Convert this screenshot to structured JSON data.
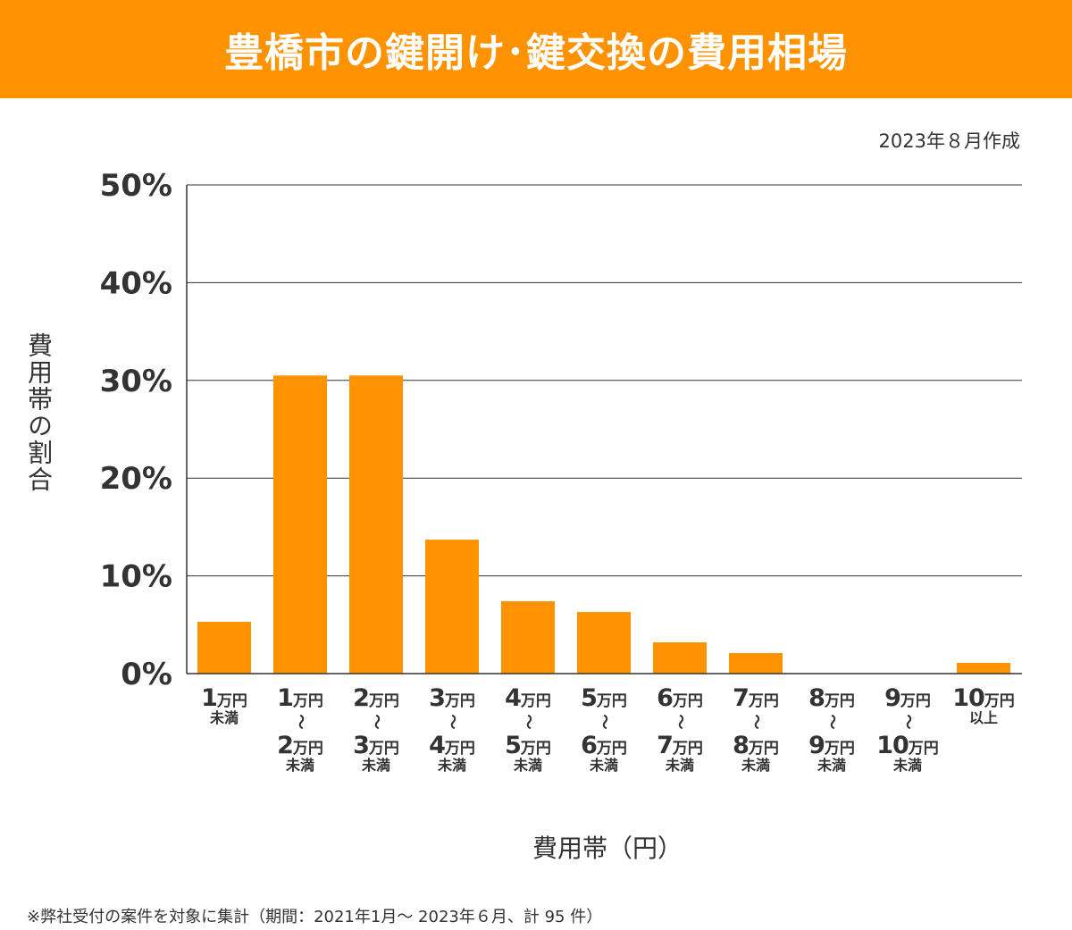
{
  "header": {
    "title": "豊橋市の鍵開け･鍵交換の費用相場"
  },
  "date_note": "2023年８月作成",
  "footnote": "※弊社受付の案件を対象に集計（期間：2021年1月～ 2023年６月、計 95 件）",
  "chart_data": {
    "type": "bar",
    "title": "豊橋市の鍵開け･鍵交換の費用相場",
    "xlabel": "費用帯（円）",
    "ylabel": "費用帯の割合",
    "ylim": [
      0,
      50
    ],
    "yticks": [
      "0%",
      "10%",
      "20%",
      "30%",
      "40%",
      "50%"
    ],
    "ytick_values": [
      0,
      10,
      20,
      30,
      40,
      50
    ],
    "grid": true,
    "bar_color": "#ff9200",
    "categories": [
      {
        "top": "1",
        "top_unit": "万円",
        "suffix": "未満"
      },
      {
        "top": "1",
        "top_unit": "万円",
        "sep": "〜",
        "bottom": "2",
        "bottom_unit": "万円",
        "suffix": "未満"
      },
      {
        "top": "2",
        "top_unit": "万円",
        "sep": "〜",
        "bottom": "3",
        "bottom_unit": "万円",
        "suffix": "未満"
      },
      {
        "top": "3",
        "top_unit": "万円",
        "sep": "〜",
        "bottom": "4",
        "bottom_unit": "万円",
        "suffix": "未満"
      },
      {
        "top": "4",
        "top_unit": "万円",
        "sep": "〜",
        "bottom": "5",
        "bottom_unit": "万円",
        "suffix": "未満"
      },
      {
        "top": "5",
        "top_unit": "万円",
        "sep": "〜",
        "bottom": "6",
        "bottom_unit": "万円",
        "suffix": "未満"
      },
      {
        "top": "6",
        "top_unit": "万円",
        "sep": "〜",
        "bottom": "7",
        "bottom_unit": "万円",
        "suffix": "未満"
      },
      {
        "top": "7",
        "top_unit": "万円",
        "sep": "〜",
        "bottom": "8",
        "bottom_unit": "万円",
        "suffix": "未満"
      },
      {
        "top": "8",
        "top_unit": "万円",
        "sep": "〜",
        "bottom": "9",
        "bottom_unit": "万円",
        "suffix": "未満"
      },
      {
        "top": "9",
        "top_unit": "万円",
        "sep": "〜",
        "bottom": "10",
        "bottom_unit": "万円",
        "suffix": "未満"
      },
      {
        "top": "10",
        "top_unit": "万円",
        "suffix": "以上"
      }
    ],
    "values": [
      5.3,
      30.5,
      30.5,
      13.7,
      7.4,
      6.3,
      3.2,
      2.1,
      0,
      0,
      1.1
    ]
  }
}
